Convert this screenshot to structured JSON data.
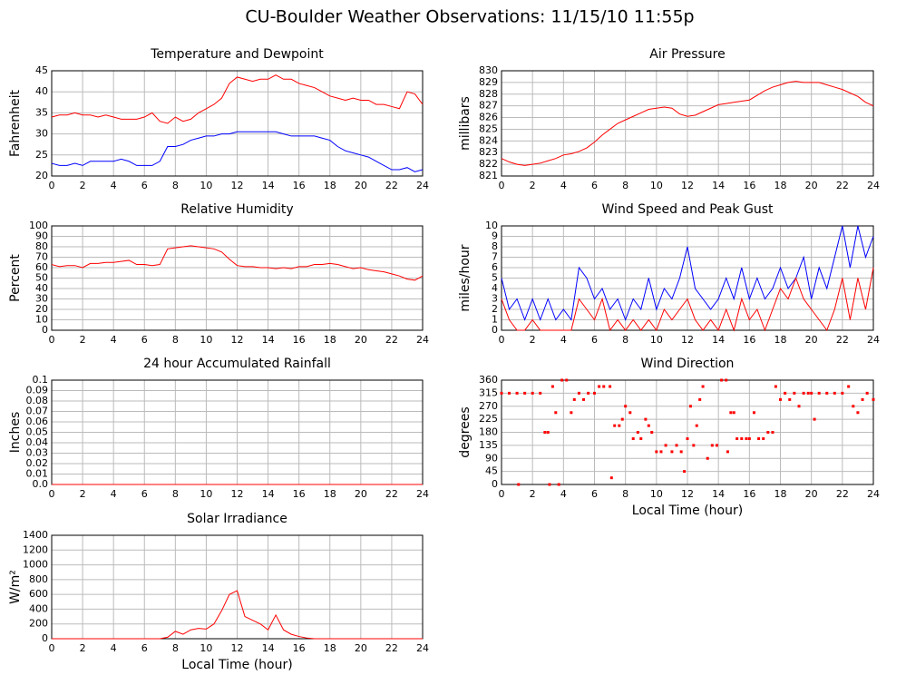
{
  "title": "CU-Boulder Weather Observations: 11/15/10 11:55p",
  "chart_data": [
    {
      "type": "line",
      "title": "Temperature and Dewpoint",
      "y_label": "Fahrenheit",
      "x": [
        0,
        0.5,
        1,
        1.5,
        2,
        2.5,
        3,
        3.5,
        4,
        4.5,
        5,
        5.5,
        6,
        6.5,
        7,
        7.5,
        8,
        8.5,
        9,
        9.5,
        10,
        10.5,
        11,
        11.5,
        12,
        12.5,
        13,
        13.5,
        14,
        14.5,
        15,
        15.5,
        16,
        16.5,
        17,
        17.5,
        18,
        18.5,
        19,
        19.5,
        20,
        20.5,
        21,
        21.5,
        22,
        22.5,
        23,
        23.5,
        24
      ],
      "series": [
        {
          "color": "#ff0000",
          "values": [
            34,
            34.5,
            34.5,
            35,
            34.5,
            34.5,
            34,
            34.5,
            34,
            33.5,
            33.5,
            33.5,
            34,
            35,
            33,
            32.5,
            34,
            33,
            33.5,
            35,
            36,
            37,
            38.5,
            42,
            43.5,
            43,
            42.5,
            43,
            43,
            44,
            43,
            43,
            42,
            41.5,
            41,
            40,
            39,
            38.5,
            38,
            38.5,
            38,
            38,
            37,
            37,
            36.5,
            36,
            40,
            39.5,
            37
          ]
        },
        {
          "color": "#0000ff",
          "values": [
            23,
            22.5,
            22.5,
            23,
            22.5,
            23.5,
            23.5,
            23.5,
            23.5,
            24,
            23.5,
            22.5,
            22.5,
            22.5,
            23.5,
            27,
            27,
            27.5,
            28.5,
            29,
            29.5,
            29.5,
            30,
            30,
            30.5,
            30.5,
            30.5,
            30.5,
            30.5,
            30.5,
            30,
            29.5,
            29.5,
            29.5,
            29.5,
            29,
            28.5,
            27,
            26,
            25.5,
            25,
            24.5,
            23.5,
            22.5,
            21.5,
            21.5,
            22,
            21,
            21.5
          ]
        }
      ],
      "xlim": [
        0,
        24
      ],
      "xticks": [
        0,
        2,
        4,
        6,
        8,
        10,
        12,
        14,
        16,
        18,
        20,
        22,
        24
      ],
      "ylim": [
        20,
        45
      ],
      "yticks": [
        20,
        25,
        30,
        35,
        40,
        45
      ],
      "grid": true
    },
    {
      "type": "line",
      "title": "Air Pressure",
      "y_label": "millibars",
      "x": [
        0,
        0.5,
        1,
        1.5,
        2,
        2.5,
        3,
        3.5,
        4,
        4.5,
        5,
        5.5,
        6,
        6.5,
        7,
        7.5,
        8,
        8.5,
        9,
        9.5,
        10,
        10.5,
        11,
        11.5,
        12,
        12.5,
        13,
        13.5,
        14,
        14.5,
        15,
        15.5,
        16,
        16.5,
        17,
        17.5,
        18,
        18.5,
        19,
        19.5,
        20,
        20.5,
        21,
        21.5,
        22,
        22.5,
        23,
        23.5,
        24
      ],
      "series": [
        {
          "color": "#ff0000",
          "values": [
            822.5,
            822.2,
            822,
            821.9,
            822,
            822.1,
            822.3,
            822.5,
            822.8,
            822.9,
            823.1,
            823.4,
            823.9,
            824.5,
            825,
            825.5,
            825.8,
            826.1,
            826.4,
            826.7,
            826.8,
            826.9,
            826.8,
            826.3,
            826.1,
            826.2,
            826.5,
            826.8,
            827.1,
            827.2,
            827.3,
            827.4,
            827.5,
            827.9,
            828.3,
            828.6,
            828.8,
            829,
            829.1,
            829,
            829,
            829,
            828.8,
            828.6,
            828.4,
            828.1,
            827.8,
            827.3,
            827
          ]
        }
      ],
      "xlim": [
        0,
        24
      ],
      "xticks": [
        0,
        2,
        4,
        6,
        8,
        10,
        12,
        14,
        16,
        18,
        20,
        22,
        24
      ],
      "ylim": [
        821,
        830
      ],
      "yticks": [
        821,
        822,
        823,
        824,
        825,
        826,
        827,
        828,
        829,
        830
      ],
      "grid": true
    },
    {
      "type": "line",
      "title": "Relative Humidity",
      "y_label": "Percent",
      "x": [
        0,
        0.5,
        1,
        1.5,
        2,
        2.5,
        3,
        3.5,
        4,
        4.5,
        5,
        5.5,
        6,
        6.5,
        7,
        7.5,
        8,
        8.5,
        9,
        9.5,
        10,
        10.5,
        11,
        11.5,
        12,
        12.5,
        13,
        13.5,
        14,
        14.5,
        15,
        15.5,
        16,
        16.5,
        17,
        17.5,
        18,
        18.5,
        19,
        19.5,
        20,
        20.5,
        21,
        21.5,
        22,
        22.5,
        23,
        23.5,
        24
      ],
      "series": [
        {
          "color": "#ff0000",
          "values": [
            63,
            61,
            62,
            62,
            60,
            64,
            64,
            65,
            65,
            66,
            67,
            63,
            63,
            62,
            63,
            78,
            79,
            80,
            81,
            80,
            79,
            78,
            75,
            68,
            62,
            61,
            61,
            60,
            60,
            59,
            60,
            59,
            61,
            61,
            63,
            63,
            64,
            63,
            61,
            59,
            60,
            58,
            57,
            56,
            54,
            52,
            49,
            48,
            52
          ]
        }
      ],
      "xlim": [
        0,
        24
      ],
      "xticks": [
        0,
        2,
        4,
        6,
        8,
        10,
        12,
        14,
        16,
        18,
        20,
        22,
        24
      ],
      "ylim": [
        0,
        100
      ],
      "yticks": [
        0,
        10,
        20,
        30,
        40,
        50,
        60,
        70,
        80,
        90,
        100
      ],
      "grid": true
    },
    {
      "type": "line",
      "title": "Wind Speed and Peak Gust",
      "y_label": "miles/hour",
      "x": [
        0,
        0.5,
        1,
        1.5,
        2,
        2.5,
        3,
        3.5,
        4,
        4.5,
        5,
        5.5,
        6,
        6.5,
        7,
        7.5,
        8,
        8.5,
        9,
        9.5,
        10,
        10.5,
        11,
        11.5,
        12,
        12.5,
        13,
        13.5,
        14,
        14.5,
        15,
        15.5,
        16,
        16.5,
        17,
        17.5,
        18,
        18.5,
        19,
        19.5,
        20,
        20.5,
        21,
        21.5,
        22,
        22.5,
        23,
        23.5,
        24
      ],
      "series": [
        {
          "color": "#0000ff",
          "values": [
            5,
            2,
            3,
            1,
            3,
            1,
            3,
            1,
            2,
            1,
            6,
            5,
            3,
            4,
            2,
            3,
            1,
            3,
            2,
            5,
            2,
            4,
            3,
            5,
            8,
            4,
            3,
            2,
            3,
            5,
            3,
            6,
            3,
            5,
            3,
            4,
            6,
            4,
            5,
            7,
            3,
            6,
            4,
            7,
            10,
            6,
            10,
            7,
            9
          ]
        },
        {
          "color": "#ff0000",
          "values": [
            3,
            1,
            0,
            0,
            1,
            0,
            0,
            0,
            0,
            0,
            3,
            2,
            1,
            3,
            0,
            1,
            0,
            1,
            0,
            1,
            0,
            2,
            1,
            2,
            3,
            1,
            0,
            1,
            0,
            2,
            0,
            3,
            1,
            2,
            0,
            2,
            4,
            3,
            5,
            3,
            2,
            1,
            0,
            2,
            5,
            1,
            5,
            2,
            6
          ]
        }
      ],
      "xlim": [
        0,
        24
      ],
      "xticks": [
        0,
        2,
        4,
        6,
        8,
        10,
        12,
        14,
        16,
        18,
        20,
        22,
        24
      ],
      "ylim": [
        0,
        10
      ],
      "yticks": [
        0,
        1,
        2,
        3,
        4,
        5,
        6,
        7,
        8,
        9,
        10
      ],
      "grid": true
    },
    {
      "type": "line",
      "title": "24 hour Accumulated Rainfall",
      "y_label": "Inches",
      "x": [
        0,
        24
      ],
      "series": [
        {
          "color": "#ff0000",
          "values": [
            0,
            0
          ]
        }
      ],
      "xlim": [
        0,
        24
      ],
      "xticks": [
        0,
        2,
        4,
        6,
        8,
        10,
        12,
        14,
        16,
        18,
        20,
        22,
        24
      ],
      "ylim": [
        0,
        0.1
      ],
      "yticks": [
        {
          "value": 0,
          "label": "0.0"
        },
        0.01,
        0.02,
        0.03,
        0.04,
        0.05,
        0.06,
        0.07,
        0.08,
        0.09,
        0.1
      ],
      "grid": true
    },
    {
      "type": "scatter",
      "title": "Wind Direction",
      "y_label": "degrees",
      "x_label": "Local Time (hour)",
      "x": [
        0,
        0.5,
        1,
        1.1,
        1.5,
        2,
        2.5,
        2.8,
        3,
        3.1,
        3.3,
        3.5,
        3.7,
        3.9,
        4.2,
        4.5,
        4.7,
        5,
        5.3,
        5.6,
        6,
        6.3,
        6.6,
        7,
        7.1,
        7.3,
        7.6,
        7.8,
        8,
        8.3,
        8.5,
        8.8,
        9,
        9.3,
        9.5,
        9.7,
        10,
        10.3,
        10.6,
        11,
        11.3,
        11.6,
        11.8,
        12,
        12.2,
        12.4,
        12.6,
        12.8,
        13,
        13.3,
        13.6,
        13.9,
        14.2,
        14.5,
        14.6,
        14.8,
        15,
        15.2,
        15.5,
        15.8,
        16,
        16.3,
        16.6,
        16.9,
        17.2,
        17.5,
        17.7,
        18,
        18.3,
        18.6,
        18.9,
        19.2,
        19.5,
        19.8,
        20,
        20.2,
        20.5,
        21,
        21.5,
        22,
        22.4,
        22.7,
        23,
        23.3,
        23.6,
        24
      ],
      "values": [
        315,
        315,
        315,
        0,
        315,
        315,
        315,
        180,
        180,
        0,
        338,
        248,
        0,
        360,
        360,
        248,
        293,
        315,
        293,
        315,
        315,
        338,
        338,
        338,
        23,
        203,
        203,
        225,
        270,
        248,
        158,
        180,
        158,
        225,
        203,
        180,
        113,
        113,
        135,
        113,
        135,
        113,
        45,
        158,
        270,
        135,
        203,
        293,
        338,
        90,
        135,
        135,
        360,
        360,
        113,
        248,
        248,
        158,
        158,
        158,
        158,
        248,
        158,
        158,
        180,
        180,
        338,
        293,
        315,
        293,
        315,
        270,
        315,
        315,
        315,
        225,
        315,
        315,
        315,
        315,
        338,
        270,
        248,
        293,
        315,
        293
      ],
      "color": "#ff0000",
      "xlim": [
        0,
        24
      ],
      "xticks": [
        0,
        2,
        4,
        6,
        8,
        10,
        12,
        14,
        16,
        18,
        20,
        22,
        24
      ],
      "ylim": [
        0,
        360
      ],
      "yticks": [
        0,
        45,
        90,
        135,
        180,
        225,
        270,
        315,
        360
      ],
      "grid": true
    },
    {
      "type": "line",
      "title": "Solar Irradiance",
      "y_label": "W/m²",
      "x_label": "Local Time (hour)",
      "x": [
        0,
        0.5,
        1,
        1.5,
        2,
        2.5,
        3,
        3.5,
        4,
        4.5,
        5,
        5.5,
        6,
        6.5,
        7,
        7.5,
        8,
        8.5,
        9,
        9.5,
        10,
        10.5,
        11,
        11.5,
        12,
        12.5,
        13,
        13.5,
        14,
        14.5,
        15,
        15.5,
        16,
        16.5,
        17,
        17.5,
        18,
        18.5,
        19,
        19.5,
        20,
        20.5,
        21,
        21.5,
        22,
        22.5,
        23,
        23.5,
        24
      ],
      "series": [
        {
          "color": "#ff0000",
          "values": [
            0,
            0,
            0,
            0,
            0,
            0,
            0,
            0,
            0,
            0,
            0,
            0,
            0,
            0,
            0,
            20,
            100,
            60,
            120,
            140,
            130,
            200,
            380,
            600,
            650,
            300,
            250,
            200,
            120,
            320,
            120,
            60,
            30,
            10,
            0,
            0,
            0,
            0,
            0,
            0,
            0,
            0,
            0,
            0,
            0,
            0,
            0,
            0,
            0
          ]
        }
      ],
      "xlim": [
        0,
        24
      ],
      "xticks": [
        0,
        2,
        4,
        6,
        8,
        10,
        12,
        14,
        16,
        18,
        20,
        22,
        24
      ],
      "ylim": [
        0,
        1400
      ],
      "yticks": [
        0,
        200,
        400,
        600,
        800,
        1000,
        1200,
        1400
      ],
      "grid": true
    }
  ]
}
